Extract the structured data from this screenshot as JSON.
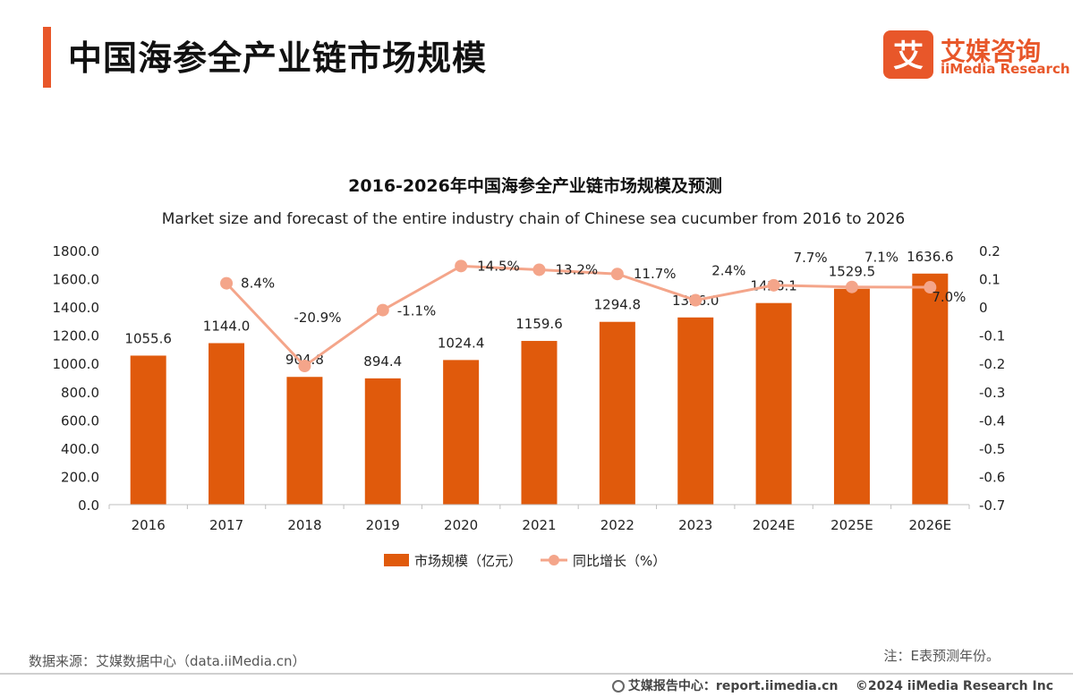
{
  "header": {
    "title": "中国海参全产业链市场规模"
  },
  "logo": {
    "cn": "艾媒咨询",
    "en": "iiMedia Research",
    "mark": "艾"
  },
  "colors": {
    "bar": "#e05a0c",
    "line": "#f4a58a",
    "accent": "#e8572a"
  },
  "chart_data": {
    "type": "bar",
    "title": "2016-2026年中国海参全产业链市场规模及预测",
    "subtitle": "Market size and forecast of the entire industry chain of Chinese sea cucumber from 2016 to 2026",
    "categories": [
      "2016",
      "2017",
      "2018",
      "2019",
      "2020",
      "2021",
      "2022",
      "2023",
      "2024E",
      "2025E",
      "2026E"
    ],
    "series": [
      {
        "name": "市场规模（亿元）",
        "type": "bar",
        "axis": "left",
        "values": [
          1055.6,
          1144.0,
          904.8,
          894.4,
          1024.4,
          1159.6,
          1294.8,
          1326.0,
          1428.1,
          1529.5,
          1636.6
        ],
        "labels": [
          "1055.6",
          "1144.0",
          "904.8",
          "894.4",
          "1024.4",
          "1159.6",
          "1294.8",
          "1326.0",
          "1428.1",
          "1529.5",
          "1636.6"
        ]
      },
      {
        "name": "同比增长（%）",
        "type": "line",
        "axis": "right",
        "values": [
          null,
          0.084,
          -0.209,
          -0.011,
          0.145,
          0.132,
          0.117,
          0.024,
          0.077,
          0.071,
          0.07
        ],
        "labels": [
          "",
          "8.4%",
          "-20.9%",
          "-1.1%",
          "14.5%",
          "13.2%",
          "11.7%",
          "2.4%",
          "7.7%",
          "7.1%",
          "7.0%"
        ]
      }
    ],
    "y_left": {
      "range": [
        0,
        1800
      ],
      "ticks": [
        "0.0",
        "200.0",
        "400.0",
        "600.0",
        "800.0",
        "1000.0",
        "1200.0",
        "1400.0",
        "1600.0",
        "1800.0"
      ]
    },
    "y_right": {
      "range": [
        -0.7,
        0.2
      ],
      "ticks": [
        "-0.7",
        "-0.6",
        "-0.5",
        "-0.4",
        "-0.3",
        "-0.2",
        "-0.1",
        "0",
        "0.1",
        "0.2"
      ]
    },
    "grid": false,
    "legend_position": "bottom"
  },
  "footer": {
    "source": "数据来源：艾媒数据中心（data.iiMedia.cn）",
    "note": "注：E表预测年份。",
    "report": "艾媒报告中心：report.iimedia.cn",
    "copyright": "©2024  iiMedia Research  Inc"
  }
}
